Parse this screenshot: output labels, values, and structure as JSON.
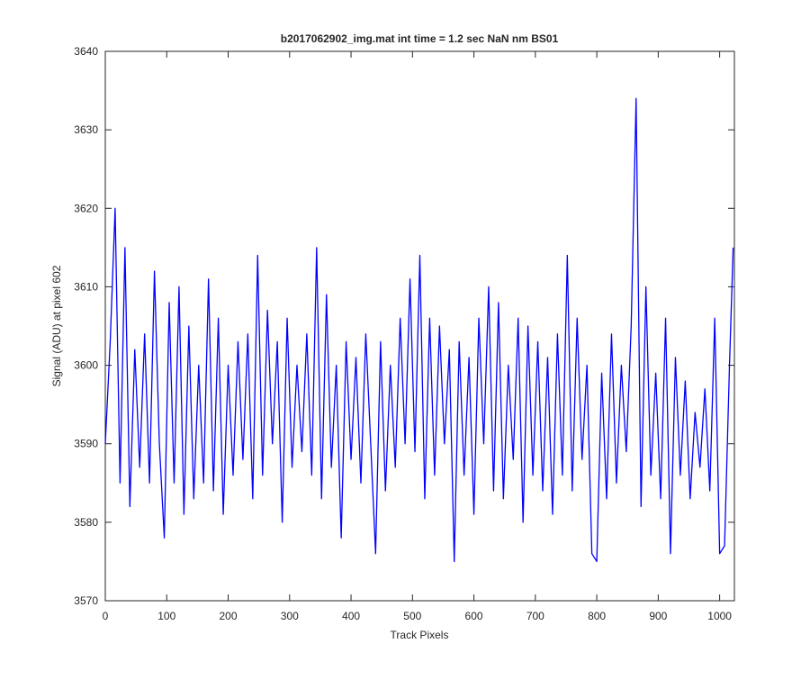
{
  "chart_data": {
    "type": "line",
    "title": "b2017062902_img.mat int time = 1.2 sec  NaN nm BS01",
    "xlabel": "Track Pixels",
    "ylabel": "Signal (ADU) at pixel 602",
    "xlim": [
      0,
      1024
    ],
    "ylim": [
      3570,
      3640
    ],
    "xticks": [
      0,
      100,
      200,
      300,
      400,
      500,
      600,
      700,
      800,
      900,
      1000
    ],
    "yticks": [
      3570,
      3580,
      3590,
      3600,
      3610,
      3620,
      3630,
      3640
    ],
    "grid": false,
    "x": [
      0,
      8,
      16,
      24,
      32,
      40,
      48,
      56,
      64,
      72,
      80,
      88,
      96,
      104,
      112,
      120,
      128,
      136,
      144,
      152,
      160,
      168,
      176,
      184,
      192,
      200,
      208,
      216,
      224,
      232,
      240,
      248,
      256,
      264,
      272,
      280,
      288,
      296,
      304,
      312,
      320,
      328,
      336,
      344,
      352,
      360,
      368,
      376,
      384,
      392,
      400,
      408,
      416,
      424,
      432,
      440,
      448,
      456,
      464,
      472,
      480,
      488,
      496,
      504,
      512,
      520,
      528,
      536,
      544,
      552,
      560,
      568,
      576,
      584,
      592,
      600,
      608,
      616,
      624,
      632,
      640,
      648,
      656,
      664,
      672,
      680,
      688,
      696,
      704,
      712,
      720,
      728,
      736,
      744,
      752,
      760,
      768,
      776,
      784,
      792,
      800,
      808,
      816,
      824,
      832,
      840,
      848,
      856,
      864,
      872,
      880,
      888,
      896,
      904,
      912,
      920,
      928,
      936,
      944,
      952,
      960,
      968,
      976,
      984,
      992,
      1000,
      1008,
      1016,
      1022
    ],
    "series": [
      {
        "color": "#0000ff",
        "values": [
          3590,
          3603,
          3620,
          3585,
          3615,
          3582,
          3602,
          3587,
          3604,
          3585,
          3612,
          3590,
          3578,
          3608,
          3585,
          3610,
          3581,
          3605,
          3583,
          3600,
          3585,
          3611,
          3584,
          3606,
          3581,
          3600,
          3586,
          3603,
          3588,
          3604,
          3583,
          3614,
          3586,
          3607,
          3590,
          3603,
          3580,
          3606,
          3587,
          3600,
          3589,
          3604,
          3586,
          3615,
          3583,
          3609,
          3587,
          3600,
          3578,
          3603,
          3588,
          3601,
          3585,
          3604,
          3590,
          3576,
          3603,
          3584,
          3600,
          3587,
          3606,
          3590,
          3611,
          3589,
          3614,
          3583,
          3606,
          3586,
          3605,
          3590,
          3602,
          3575,
          3603,
          3586,
          3601,
          3581,
          3606,
          3590,
          3610,
          3584,
          3608,
          3583,
          3600,
          3588,
          3606,
          3580,
          3605,
          3586,
          3603,
          3584,
          3601,
          3581,
          3604,
          3586,
          3614,
          3584,
          3606,
          3588,
          3600,
          3576,
          3575,
          3599,
          3583,
          3604,
          3585,
          3600,
          3589,
          3605,
          3634,
          3582,
          3610,
          3586,
          3599,
          3583,
          3606,
          3576,
          3601,
          3586,
          3598,
          3583,
          3594,
          3587,
          3597,
          3584,
          3606,
          3576,
          3577,
          3600,
          3615
        ]
      }
    ]
  }
}
